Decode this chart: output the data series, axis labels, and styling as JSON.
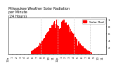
{
  "title": "Milwaukee Weather Solar Radiation\nper Minute\n(24 Hours)",
  "bar_color": "#ff0000",
  "background_color": "#ffffff",
  "grid_color": "#cccccc",
  "legend_label": "Solar Rad",
  "legend_color": "#ff0000",
  "xlim": [
    0,
    1440
  ],
  "ylim": [
    0,
    1.05
  ],
  "num_bars": 1440,
  "peak_minute": 760,
  "peak_value": 0.98,
  "sigma": 195,
  "noise_scale": 0.035,
  "dashed_lines": [
    480,
    720,
    960,
    1200
  ],
  "xtick_positions": [
    0,
    60,
    120,
    180,
    240,
    300,
    360,
    420,
    480,
    540,
    600,
    660,
    720,
    780,
    840,
    900,
    960,
    1020,
    1080,
    1140,
    1200,
    1260,
    1320,
    1380
  ],
  "xtick_labels": [
    "12a",
    "1",
    "2",
    "3",
    "4",
    "5",
    "6",
    "7",
    "8",
    "9",
    "10",
    "11",
    "12p",
    "1",
    "2",
    "3",
    "4",
    "5",
    "6",
    "7",
    "8",
    "9",
    "10",
    "11"
  ],
  "ytick_positions": [
    0.2,
    0.4,
    0.6,
    0.8,
    1.0
  ],
  "ytick_labels": [
    "2",
    "4",
    "6",
    "8",
    "1"
  ],
  "title_fontsize": 3.5,
  "tick_fontsize": 2.8,
  "legend_fontsize": 3.2
}
